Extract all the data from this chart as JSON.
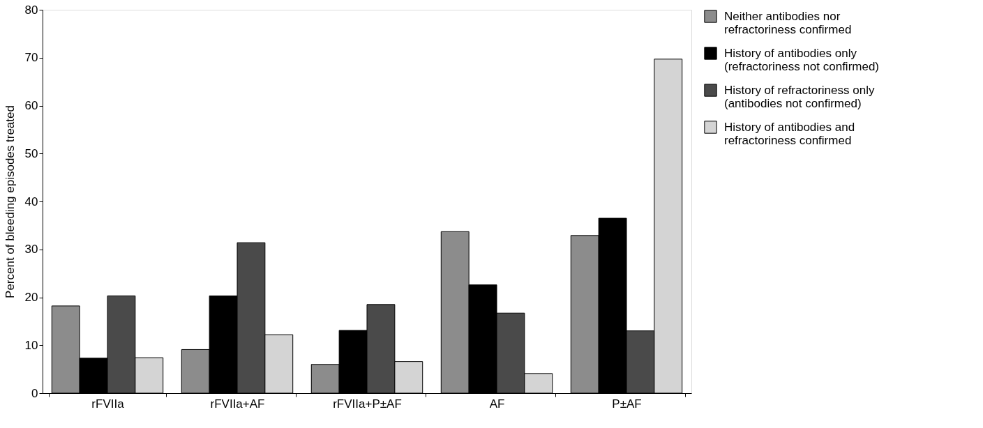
{
  "chart_data": {
    "type": "bar",
    "ylabel": "Percent of bleeding episodes treated",
    "categories": [
      "rFVIIa",
      "rFVIIa+AF",
      "rFVIIa+P±AF",
      "AF",
      "P±AF"
    ],
    "series": [
      {
        "name": "Neither antibodies nor refractoriness confirmed",
        "color": "#8c8c8c",
        "values": [
          18.2,
          9.1,
          6.0,
          33.7,
          32.9
        ]
      },
      {
        "name": "History of antibodies only (refractoriness not confirmed)",
        "color": "#000000",
        "values": [
          7.3,
          20.3,
          13.1,
          22.6,
          36.5
        ]
      },
      {
        "name": "History of refractoriness only (antibodies not confirmed)",
        "color": "#4a4a4a",
        "values": [
          20.3,
          31.4,
          18.5,
          16.7,
          13.0
        ]
      },
      {
        "name": "History of antibodies and refractoriness confirmed",
        "color": "#d4d4d4",
        "values": [
          7.4,
          12.2,
          6.6,
          4.1,
          69.7
        ]
      }
    ],
    "ylim": [
      0,
      80
    ],
    "yticks": [
      0,
      10,
      20,
      30,
      40,
      50,
      60,
      70,
      80
    ],
    "grid": false,
    "legend": "right"
  }
}
